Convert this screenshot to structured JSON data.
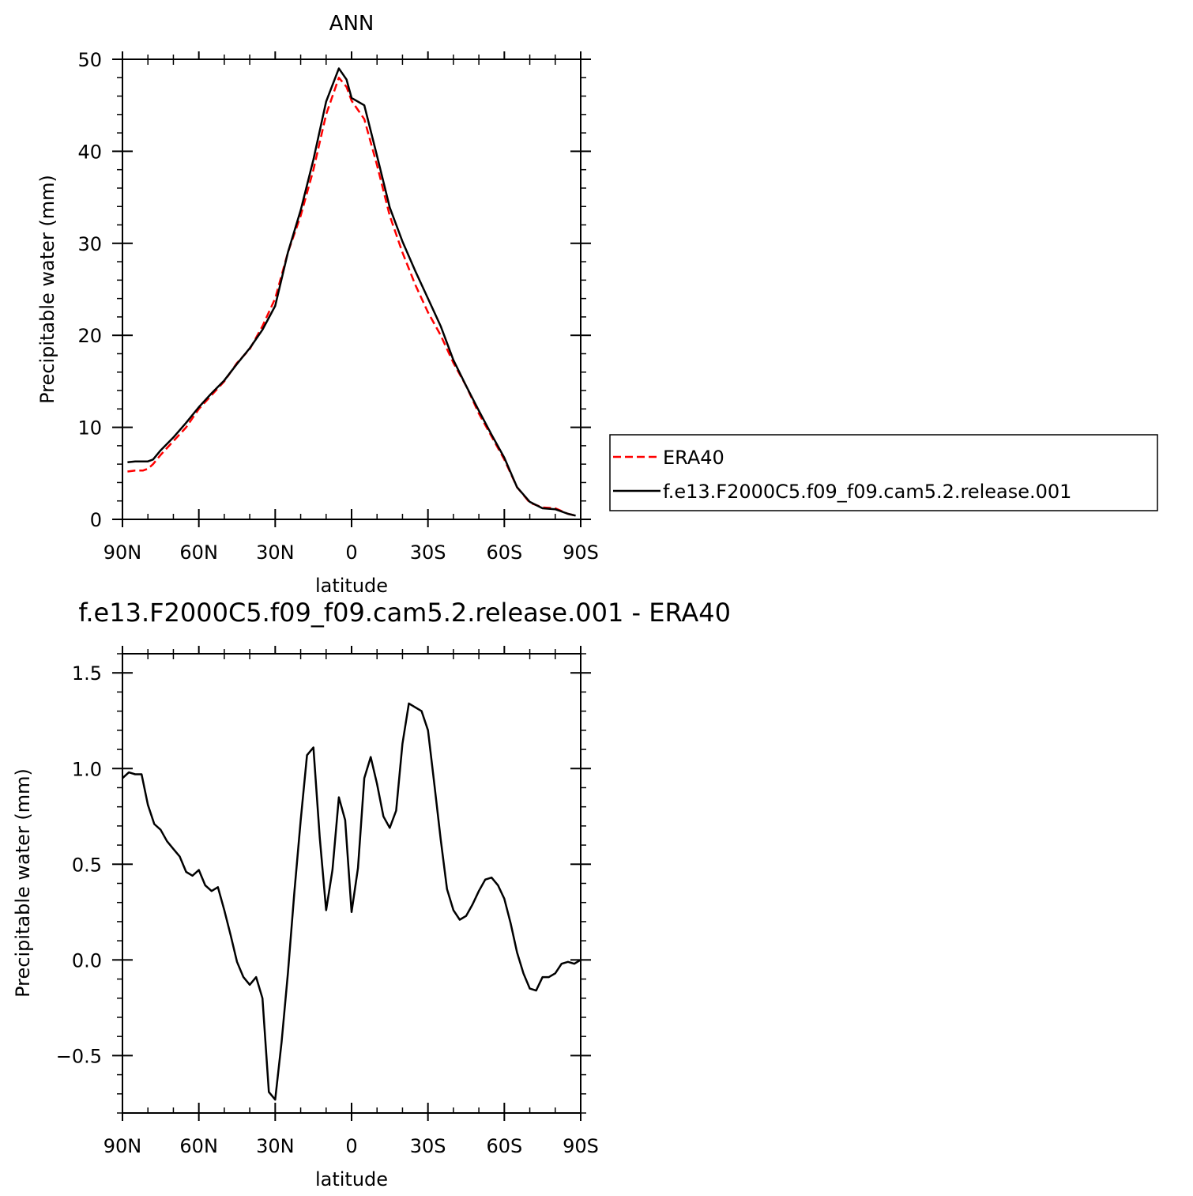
{
  "chart_data": [
    {
      "type": "line",
      "title": "ANN",
      "xlabel": "latitude",
      "ylabel": "Precipitable water (mm)",
      "ylim": [
        0,
        50
      ],
      "xlim": [
        90,
        -90
      ],
      "x_ticks": [
        90,
        60,
        30,
        0,
        -30,
        -60,
        -90
      ],
      "x_tick_labels": [
        "90N",
        "60N",
        "30N",
        "0",
        "30S",
        "60S",
        "90S"
      ],
      "y_ticks": [
        0,
        10,
        20,
        30,
        40,
        50
      ],
      "y_tick_labels": [
        "0",
        "10",
        "20",
        "30",
        "40",
        "50"
      ],
      "legend_position": "right",
      "series": [
        {
          "name": "ERA40",
          "color": "#ff0000",
          "dash": "dashed",
          "x": [
            88,
            85,
            82,
            80,
            78,
            75,
            70,
            65,
            60,
            55,
            50,
            45,
            40,
            35,
            30,
            25,
            20,
            15,
            10,
            5,
            2,
            0,
            -5,
            -10,
            -15,
            -20,
            -25,
            -30,
            -35,
            -40,
            -45,
            -50,
            -55,
            -60,
            -65,
            -70,
            -75,
            -80,
            -85,
            -88
          ],
          "y": [
            5.2,
            5.3,
            5.3,
            5.5,
            6.0,
            7.0,
            8.5,
            10.0,
            12.0,
            13.5,
            15.0,
            17.0,
            18.5,
            21.0,
            24.0,
            29.0,
            33.0,
            38.0,
            44.0,
            48.0,
            47.0,
            45.5,
            43.5,
            38.5,
            33.0,
            29.0,
            25.5,
            22.5,
            20.0,
            17.0,
            14.5,
            11.5,
            9.0,
            6.5,
            3.5,
            1.8,
            1.3,
            1.2,
            0.6,
            0.4
          ]
        },
        {
          "name": "f.e13.F2000C5.f09_f09.cam5.2.release.001",
          "color": "#000000",
          "dash": "solid",
          "x": [
            88,
            85,
            82,
            80,
            78,
            75,
            70,
            65,
            60,
            55,
            50,
            45,
            40,
            35,
            30,
            25,
            20,
            15,
            10,
            5,
            2,
            0,
            -5,
            -10,
            -15,
            -20,
            -25,
            -30,
            -35,
            -40,
            -45,
            -50,
            -55,
            -60,
            -65,
            -70,
            -75,
            -80,
            -85,
            -88
          ],
          "y": [
            6.2,
            6.3,
            6.3,
            6.3,
            6.5,
            7.5,
            8.9,
            10.5,
            12.2,
            13.7,
            15.1,
            16.9,
            18.6,
            20.6,
            23.2,
            29.0,
            33.6,
            39.1,
            45.4,
            49.0,
            47.8,
            45.8,
            45.0,
            39.5,
            33.9,
            30.2,
            27.0,
            24.0,
            21.0,
            17.3,
            14.5,
            11.8,
            9.2,
            6.7,
            3.5,
            1.9,
            1.2,
            1.1,
            0.6,
            0.4
          ]
        }
      ]
    },
    {
      "type": "line",
      "title": "f.e13.F2000C5.f09_f09.cam5.2.release.001  - ERA40",
      "xlabel": "latitude",
      "ylabel": "Precipitable water (mm)",
      "ylim": [
        -0.8,
        1.6
      ],
      "xlim": [
        90,
        -90
      ],
      "x_ticks": [
        90,
        60,
        30,
        0,
        -30,
        -60,
        -90
      ],
      "x_tick_labels": [
        "90N",
        "60N",
        "30N",
        "0",
        "30S",
        "60S",
        "90S"
      ],
      "y_ticks": [
        -0.5,
        0.0,
        0.5,
        1.0,
        1.5
      ],
      "y_tick_labels": [
        "−0.5",
        "0.0",
        "0.5",
        "1.0",
        "1.5"
      ],
      "series": [
        {
          "color": "#000000",
          "dash": "solid",
          "x": [
            90,
            87.5,
            85,
            82.5,
            80,
            77.5,
            75,
            72.5,
            70,
            67.5,
            65,
            62.5,
            60,
            57.5,
            55,
            52.5,
            50,
            47.5,
            45,
            42.5,
            40,
            37.5,
            35,
            32.5,
            30,
            27.5,
            25,
            22.5,
            20,
            17.5,
            15,
            12.5,
            10,
            7.5,
            5,
            2.5,
            0,
            -2.5,
            -5,
            -7.5,
            -10,
            -12.5,
            -15,
            -17.5,
            -20,
            -22.5,
            -25,
            -27.5,
            -30,
            -32.5,
            -35,
            -37.5,
            -40,
            -42.5,
            -45,
            -47.5,
            -50,
            -52.5,
            -55,
            -57.5,
            -60,
            -62.5,
            -65,
            -67.5,
            -70,
            -72.5,
            -75,
            -77.5,
            -80,
            -82.5,
            -85,
            -87.5,
            -90
          ],
          "y": [
            0.95,
            0.98,
            0.97,
            0.97,
            0.81,
            0.71,
            0.68,
            0.62,
            0.58,
            0.54,
            0.46,
            0.44,
            0.47,
            0.39,
            0.36,
            0.38,
            0.26,
            0.13,
            -0.01,
            -0.09,
            -0.13,
            -0.09,
            -0.2,
            -0.69,
            -0.73,
            -0.43,
            -0.07,
            0.35,
            0.73,
            1.07,
            1.11,
            0.64,
            0.26,
            0.47,
            0.85,
            0.73,
            0.25,
            0.48,
            0.95,
            1.06,
            0.92,
            0.75,
            0.69,
            0.78,
            1.13,
            1.34,
            1.32,
            1.3,
            1.2,
            0.92,
            0.63,
            0.37,
            0.26,
            0.21,
            0.23,
            0.29,
            0.36,
            0.42,
            0.43,
            0.39,
            0.32,
            0.19,
            0.04,
            -0.07,
            -0.15,
            -0.16,
            -0.09,
            -0.09,
            -0.07,
            -0.02,
            -0.01,
            -0.02,
            0.0
          ]
        }
      ]
    }
  ]
}
